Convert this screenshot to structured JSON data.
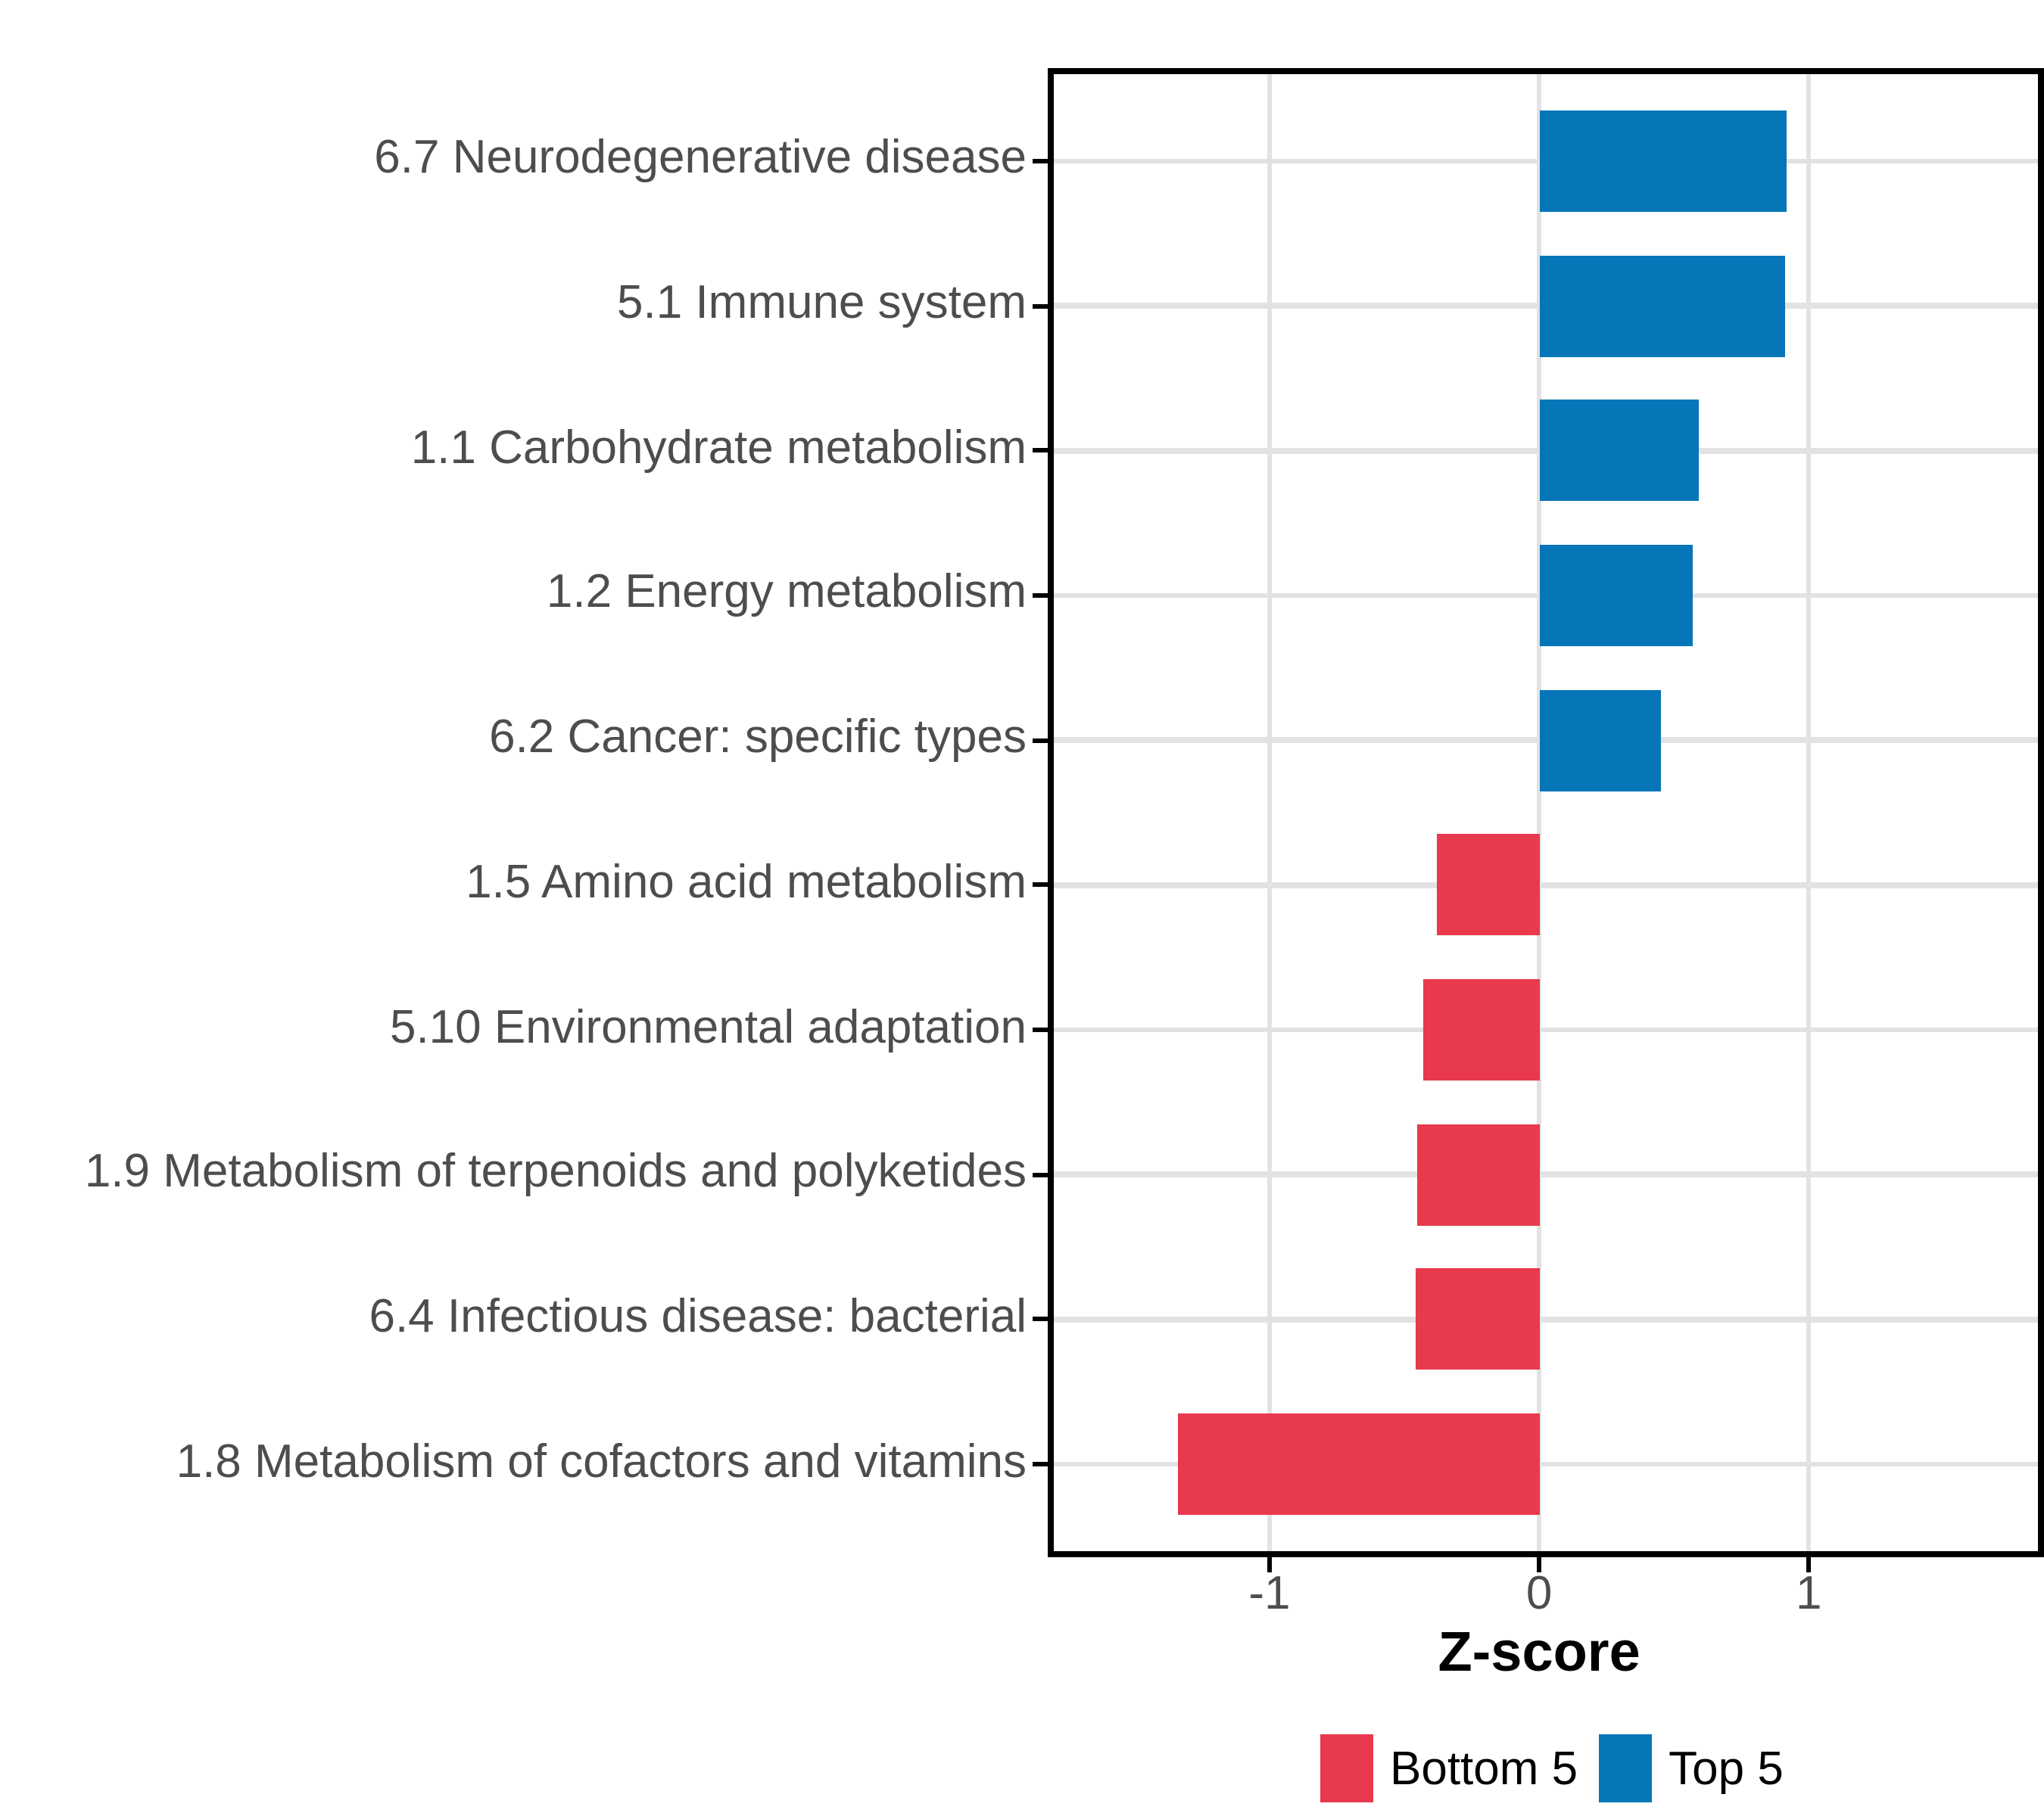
{
  "chart_data": {
    "type": "bar",
    "orientation": "horizontal",
    "xlabel": "Z-score",
    "categories": [
      "6.7 Neurodegenerative disease",
      "5.1 Immune system",
      "1.1 Carbohydrate metabolism",
      "1.2 Energy metabolism",
      "6.2 Cancer: specific types",
      "1.5 Amino acid metabolism",
      "5.10 Environmental adaptation",
      "1.9 Metabolism of terpenoids and polyketides",
      "6.4 Infectious disease: bacterial",
      "1.8 Metabolism of cofactors and vitamins"
    ],
    "series": [
      {
        "name": "Top 5",
        "color": "#0676B8",
        "values": [
          0.92,
          0.91,
          0.59,
          0.57,
          0.45,
          null,
          null,
          null,
          null,
          null
        ]
      },
      {
        "name": "Bottom 5",
        "color": "#E8394D",
        "values": [
          null,
          null,
          null,
          null,
          null,
          -0.38,
          -0.43,
          -0.45,
          -0.46,
          -1.34
        ]
      }
    ],
    "values_flat": [
      0.92,
      0.91,
      0.59,
      0.57,
      0.45,
      -0.38,
      -0.43,
      -0.45,
      -0.46,
      -1.34
    ],
    "groups_flat": [
      "Top 5",
      "Top 5",
      "Top 5",
      "Top 5",
      "Top 5",
      "Bottom 5",
      "Bottom 5",
      "Bottom 5",
      "Bottom 5",
      "Bottom 5"
    ],
    "xlim": [
      -1.8,
      1.85
    ],
    "xticks": [
      -1,
      0,
      1
    ],
    "xtick_labels": [
      "-1",
      "0",
      "1"
    ],
    "grid": "major-x-and-category-y",
    "legend_position": "bottom",
    "legend": {
      "entries": [
        {
          "label": "Bottom 5",
          "color": "#E8394D"
        },
        {
          "label": "Top 5",
          "color": "#0676B8"
        }
      ]
    }
  },
  "style_colors": {
    "bar_blue": "#0676B8",
    "bar_red": "#E8394D",
    "axis_text_gray": "#4d4d4d",
    "gridline_gray": "#e2e2e2",
    "panel_border_black": "#000000"
  }
}
